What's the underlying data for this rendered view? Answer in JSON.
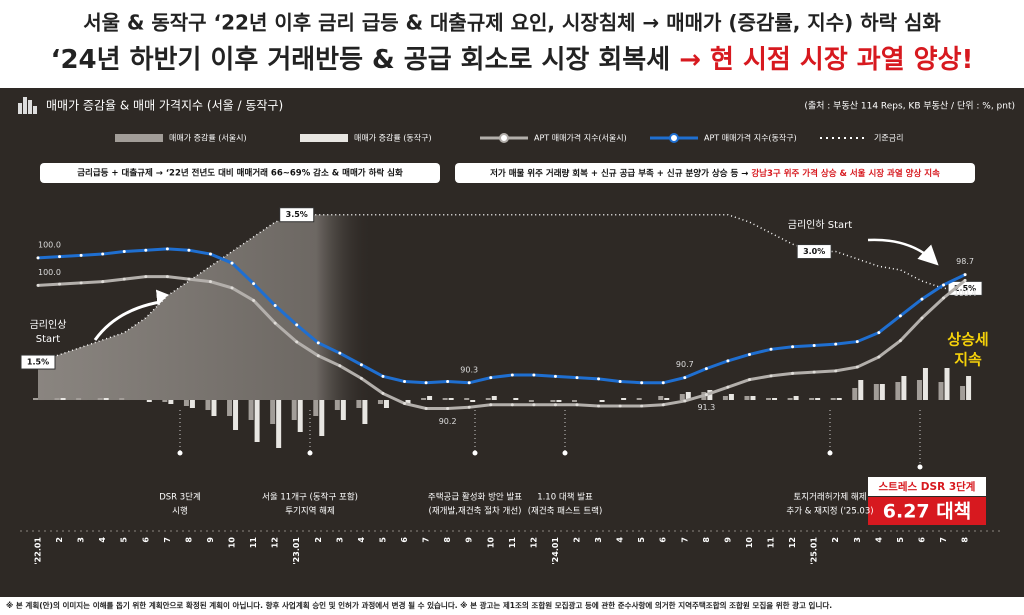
{
  "header": {
    "line1": "서울 & 동작구 ‘22년 이후 금리 급등 & 대출규제 요인, 시장침체 → 매매가 (증감률, 지수) 하락 심화",
    "line2": "‘24년 하반기 이후 거래반등 & 공급 회소로 시장 회복세 ",
    "line2_highlight": "→ 현 시점 시장 과열 양상!"
  },
  "footnote": "※ 본 계획(안)의 이미지는 이해를 돕기 위한 계획안으로 확정된 계획이 아닙니다. 향후 사업계획 승인 및 인허가 과정에서 변경 될 수 있습니다.  ※ 본 광고는 제1조의 조합원 모집광고 등에 관한 준수사항에 의거한 지역주택조합의 조합원 모집을 위한 광고 입니다.",
  "chart_data": {
    "type": "combo",
    "title": "매매가 증감율 & 매매 가격지수 (서울 / 동작구)",
    "source": "(출처 : 부동산 114 Reps, KB 부동산 / 단위 : %, pnt)",
    "categories": [
      "'22.01",
      "2",
      "3",
      "4",
      "5",
      "6",
      "7",
      "8",
      "9",
      "10",
      "11",
      "12",
      "'23.01",
      "2",
      "3",
      "4",
      "5",
      "6",
      "7",
      "8",
      "9",
      "10",
      "11",
      "12",
      "'24.01",
      "2",
      "3",
      "4",
      "5",
      "6",
      "7",
      "8",
      "9",
      "10",
      "11",
      "12",
      "'25.01",
      "2",
      "3",
      "4",
      "5",
      "6",
      "7",
      "8"
    ],
    "series": [
      {
        "name": "매매가 증감률 (서울시)",
        "type": "bar",
        "color": "#a29d98",
        "ylim": [
          -3,
          10
        ],
        "values": [
          0.1,
          0.1,
          0.1,
          0.1,
          0.1,
          0,
          -0.1,
          -0.3,
          -0.5,
          -0.8,
          -1.0,
          -1.2,
          -1.0,
          -0.8,
          -0.5,
          -0.4,
          -0.2,
          0,
          0.1,
          0.1,
          0.1,
          0.1,
          0,
          -0.1,
          -0.1,
          -0.1,
          0,
          0,
          0.1,
          0.2,
          0.3,
          0.4,
          0.2,
          0.2,
          0.1,
          0.1,
          0.1,
          0.1,
          0.6,
          0.8,
          0.9,
          1.0,
          0.9,
          0.7
        ]
      },
      {
        "name": "매매가 증감률 (동작구)",
        "type": "bar",
        "color": "#e8e6e2",
        "ylim": [
          -3,
          10
        ],
        "values": [
          0,
          0.1,
          0,
          0.1,
          0,
          -0.1,
          -0.2,
          -0.4,
          -0.8,
          -1.5,
          -2.1,
          -2.4,
          -1.6,
          -1.8,
          -1.0,
          -1.2,
          -0.4,
          -0.2,
          0.2,
          0.1,
          -0.1,
          0.2,
          0.1,
          0,
          -0.1,
          0,
          -0.1,
          0.1,
          0,
          0.1,
          0.4,
          0.5,
          0.3,
          0.2,
          0.1,
          0.2,
          0.1,
          0.1,
          1.0,
          0.8,
          1.2,
          1.6,
          1.6,
          1.2
        ]
      },
      {
        "name": "APT 매매가격 지수(서울시)",
        "type": "line",
        "color": "#b3afab",
        "ylim": [
          86.1,
          106.8
        ],
        "values": [
          100.0,
          100.1,
          100.2,
          100.3,
          100.5,
          100.7,
          100.7,
          100.5,
          100.3,
          99.8,
          98.8,
          97.0,
          95.5,
          94.4,
          93.6,
          92.6,
          91.4,
          90.6,
          90.2,
          90.2,
          90.3,
          90.5,
          90.5,
          90.5,
          90.5,
          90.5,
          90.4,
          90.4,
          90.4,
          90.5,
          90.8,
          91.3,
          91.9,
          92.5,
          92.8,
          93.0,
          93.1,
          93.2,
          93.5,
          94.3,
          95.6,
          97.4,
          99.0,
          100.4
        ],
        "value_labels": [
          "100.0",
          null,
          null,
          null,
          null,
          null,
          null,
          null,
          null,
          null,
          null,
          null,
          null,
          null,
          null,
          null,
          null,
          null,
          null,
          "90.2",
          null,
          null,
          null,
          null,
          null,
          null,
          null,
          null,
          null,
          null,
          null,
          "91.3",
          null,
          null,
          null,
          null,
          null,
          null,
          null,
          null,
          null,
          null,
          null,
          "100.4"
        ]
      },
      {
        "name": "APT 매매가격 지수(동작구)",
        "type": "line",
        "color": "#1f6fd1",
        "ylim": [
          84.3,
          104.5
        ],
        "values": [
          100.0,
          100.1,
          100.2,
          100.3,
          100.5,
          100.6,
          100.7,
          100.6,
          100.3,
          99.6,
          98.0,
          96.3,
          94.8,
          93.4,
          92.6,
          91.7,
          90.8,
          90.4,
          90.3,
          90.4,
          90.3,
          90.7,
          90.9,
          90.9,
          90.8,
          90.7,
          90.6,
          90.4,
          90.3,
          90.3,
          90.7,
          91.4,
          92.0,
          92.5,
          92.9,
          93.1,
          93.2,
          93.3,
          93.5,
          94.2,
          95.5,
          96.8,
          97.9,
          98.7
        ],
        "value_labels": [
          "100.0",
          null,
          null,
          null,
          null,
          null,
          null,
          null,
          null,
          null,
          null,
          null,
          null,
          null,
          null,
          null,
          null,
          null,
          null,
          null,
          "90.3",
          null,
          null,
          null,
          null,
          null,
          null,
          null,
          null,
          null,
          "90.7",
          null,
          null,
          null,
          null,
          null,
          null,
          null,
          null,
          null,
          null,
          null,
          null,
          "98.7"
        ]
      },
      {
        "name": "기준금리",
        "type": "rate",
        "color": "#ffffff",
        "ylim": [
          0.17,
          3.7
        ],
        "values": [
          1.5,
          1.6,
          1.7,
          1.8,
          1.9,
          2.1,
          2.4,
          2.6,
          2.8,
          3.0,
          3.2,
          3.4,
          3.5,
          3.5,
          3.5,
          3.5,
          3.5,
          3.5,
          3.5,
          3.5,
          3.5,
          3.5,
          3.5,
          3.5,
          3.5,
          3.5,
          3.5,
          3.5,
          3.5,
          3.5,
          3.5,
          3.5,
          3.5,
          3.4,
          3.25,
          3.1,
          3.0,
          3.0,
          2.9,
          2.8,
          2.75,
          2.6,
          2.5,
          2.5
        ],
        "value_labels": [
          "1.5%",
          null,
          null,
          null,
          null,
          null,
          null,
          null,
          null,
          null,
          null,
          null,
          "3.5%",
          null,
          null,
          null,
          null,
          null,
          null,
          null,
          null,
          null,
          null,
          null,
          null,
          null,
          null,
          null,
          null,
          null,
          null,
          null,
          null,
          null,
          null,
          null,
          "3.0%",
          null,
          null,
          null,
          null,
          null,
          null,
          "2.5%"
        ]
      }
    ],
    "banners": [
      {
        "text": "금리급등 + 대출규제 → ‘22년 전년도 대비 매매거래 66~69% 감소 & 매매가 하락 심화"
      },
      {
        "text": "저가 매물 위주 거래량 회복 + 신규 공급 부족 + 신규 분양가 상승 등 → ",
        "highlight": "강남3구 위주 가격 상승 & 서울 시장 과열 양상 지속"
      }
    ],
    "rate_up_note": [
      "금리인상",
      "Start"
    ],
    "rate_down_note": "금리인하 Start",
    "trend_note": [
      "상승세",
      "지속"
    ],
    "events": [
      [
        "DSR 3단계",
        "시행"
      ],
      [
        "서울 11개구 (동작구 포함)",
        "투기지역 해제"
      ],
      [
        "주택공급 활성화 방안 발표",
        "(재개발,재건축 절차 개선)"
      ],
      [
        "1.10 대책 발표",
        "(재건축 패스트 트랙)"
      ],
      [
        "토지거래허가제 해제",
        "추가 & 재지정 ('25.03)"
      ]
    ],
    "policy_box": [
      "스트레스 DSR 3단계",
      "6.27 대책"
    ]
  }
}
